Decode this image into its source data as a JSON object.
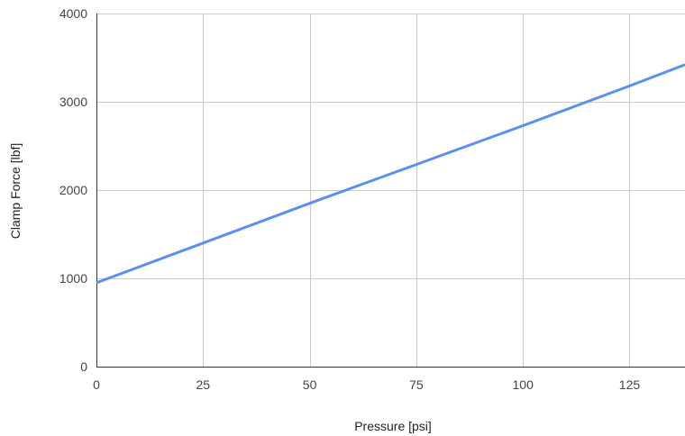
{
  "chart_data": {
    "type": "line",
    "xlabel": "Pressure [psi]",
    "ylabel": "Clamp Force [lbf]",
    "xlim": [
      0,
      138
    ],
    "ylim": [
      0,
      4000
    ],
    "x_ticks": [
      0,
      25,
      50,
      75,
      100,
      125
    ],
    "y_ticks": [
      0,
      1000,
      2000,
      3000,
      4000
    ],
    "x_tick_labels": [
      "0",
      "25",
      "50",
      "75",
      "100",
      "125"
    ],
    "y_tick_labels": [
      "0",
      "1000",
      "2000",
      "3000",
      "4000"
    ],
    "grid": true,
    "legend": "none",
    "series": [
      {
        "color": "#5b8ff0",
        "x": [
          0,
          25,
          50,
          75,
          100,
          125,
          138
        ],
        "y": [
          950,
          1400,
          1850,
          2290,
          2730,
          3180,
          3420
        ]
      }
    ]
  },
  "colors": {
    "grid": "#cccccc",
    "axis": "#333333",
    "line": "#5b8ff0"
  }
}
